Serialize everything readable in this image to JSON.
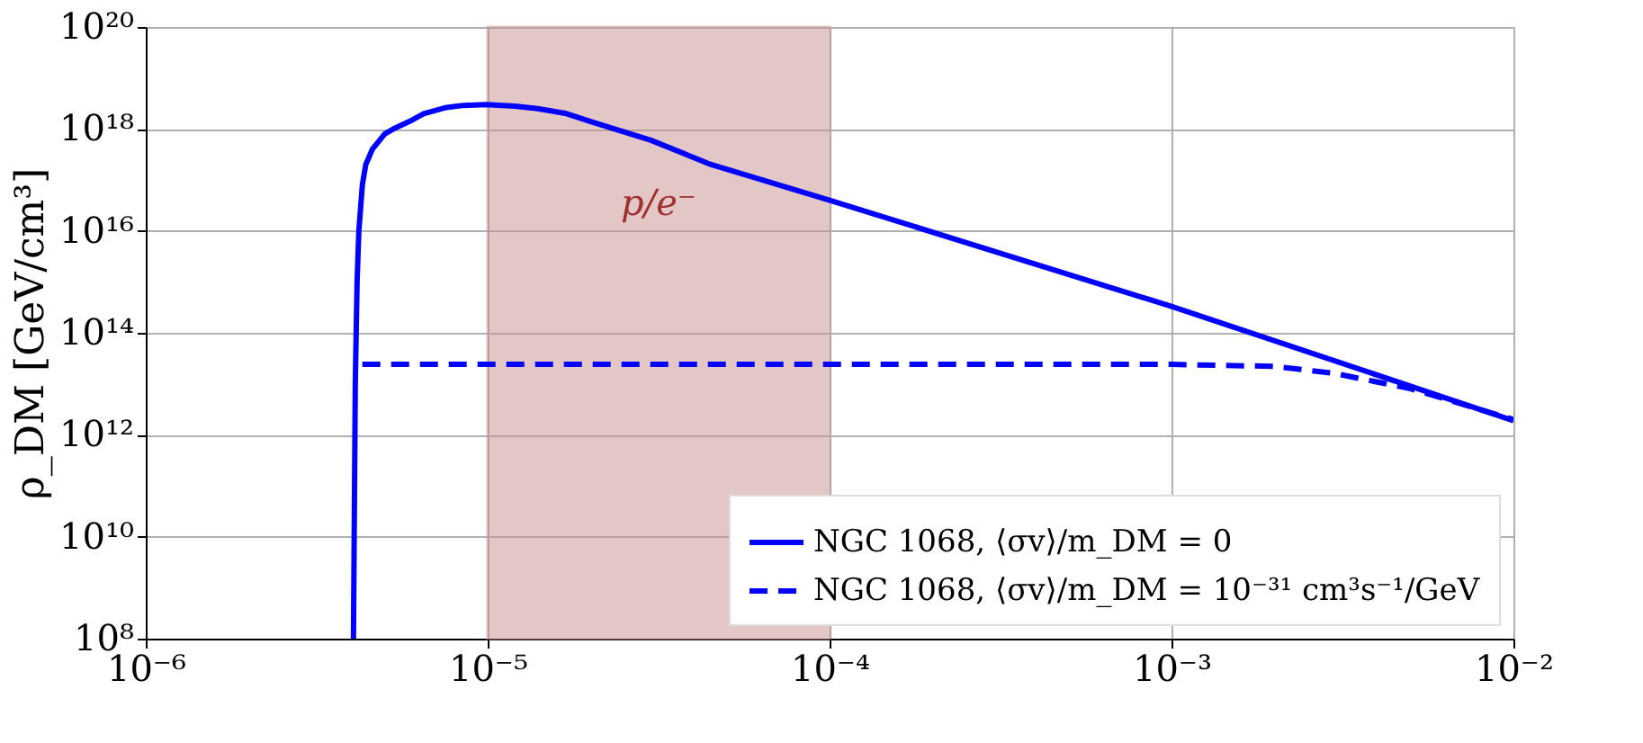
{
  "chart_data": {
    "type": "line",
    "xlabel": null,
    "ylabel": "ρ_DM [GeV/cm³]",
    "log": "xy",
    "grid": true,
    "legend": "bottom right",
    "xlim": [
      1e-06,
      0.01
    ],
    "xticks": [
      {
        "value": 1e-06,
        "label": "10⁻⁶"
      },
      {
        "value": 1e-05,
        "label": "10⁻⁵"
      },
      {
        "value": 0.0001,
        "label": "10⁻⁴"
      },
      {
        "value": 0.001,
        "label": "10⁻³"
      },
      {
        "value": 0.01,
        "label": "10⁻²"
      }
    ],
    "ylim": [
      100000000.0,
      1e+20
    ],
    "yticks": [
      {
        "value": 100000000.0,
        "label": "10⁸"
      },
      {
        "value": 10000000000.0,
        "label": "10¹⁰"
      },
      {
        "value": 1000000000000.0,
        "label": "10¹²"
      },
      {
        "value": 100000000000000.0,
        "label": "10¹⁴"
      },
      {
        "value": 1e+16,
        "label": "10¹⁶"
      },
      {
        "value": 1e+18,
        "label": "10¹⁸"
      },
      {
        "value": 1e+20,
        "label": "10²⁰"
      }
    ],
    "bands": [
      {
        "axis": "x",
        "from": 1e-05,
        "to": 0.0001,
        "label": "p/e⁻",
        "color": "#c98f8f"
      }
    ],
    "series": [
      {
        "name": "NGC 1068, ⟨σv⟩/m_DM = 0",
        "color": "#0000ff",
        "line_style": "solid",
        "x": [
          4.05e-06,
          4.1e-06,
          4.15e-06,
          4.2e-06,
          4.3e-06,
          4.4e-06,
          4.6e-06,
          5e-06,
          5.3e-06,
          5.9e-06,
          6.5e-06,
          7.5e-06,
          8.5e-06,
          9.9e-06,
          1.2e-05,
          1.4e-05,
          1.7e-05,
          2e-05,
          3e-05,
          4.5e-05,
          0.0001,
          0.001,
          0.01
        ],
        "values": [
          100000000.0,
          10000000000000.0,
          1000000000000000.0,
          1e+16,
          8e+16,
          2e+17,
          4e+17,
          8e+17,
          1e+18,
          1.4e+18,
          2e+18,
          2.6e+18,
          2.9e+18,
          3e+18,
          2.8e+18,
          2.5e+18,
          2e+18,
          1.4e+18,
          6e+17,
          2e+17,
          4e+16,
          330000000000000.0,
          1900000000000.0
        ]
      },
      {
        "name": "NGC 1068, ⟨σv⟩/m_DM = 10⁻³¹ cm³s⁻¹/GeV",
        "color": "#0000ff",
        "line_style": "dashed",
        "x": [
          4.3e-06,
          0.0001,
          0.001,
          0.002,
          0.003,
          0.005,
          0.01
        ],
        "values": [
          24000000000000.0,
          24000000000000.0,
          24000000000000.0,
          22000000000000.0,
          16000000000000.0,
          8000000000000.0,
          2000000000000.0
        ]
      }
    ]
  }
}
